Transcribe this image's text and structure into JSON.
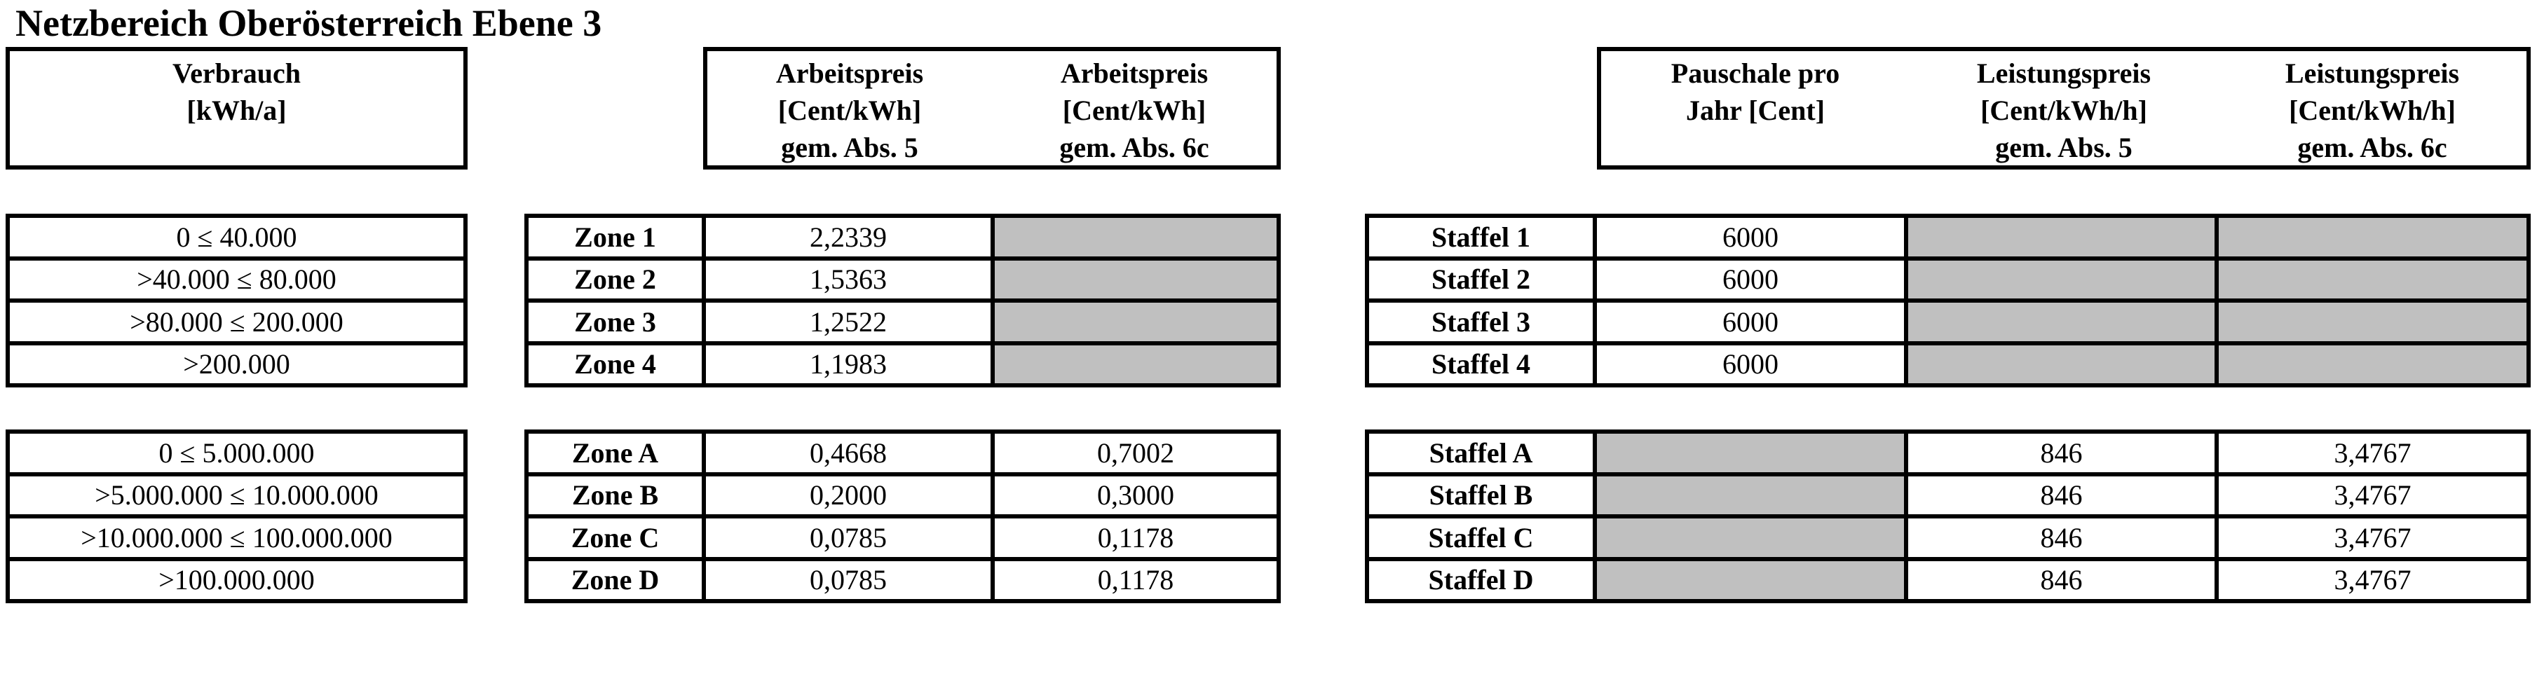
{
  "title": "Netzbereich Oberösterreich Ebene 3",
  "colors": {
    "background": "#ffffff",
    "grid": "#000000",
    "blocked_cell": "#c0c0c0",
    "text": "#000000"
  },
  "headers": {
    "verbrauch": {
      "line1": "Verbrauch",
      "line2": "[kWh/a]"
    },
    "arbeitspreis_abs5": {
      "line1": "Arbeitspreis",
      "line2": "[Cent/kWh]",
      "line3": "gem. Abs. 5"
    },
    "arbeitspreis_abs6c": {
      "line1": "Arbeitspreis",
      "line2": "[Cent/kWh]",
      "line3": "gem. Abs. 6c"
    },
    "pauschale": {
      "line1": "Pauschale pro",
      "line2": "Jahr [Cent]",
      "line3": ""
    },
    "leistungspreis_abs5": {
      "line1": "Leistungspreis",
      "line2": "[Cent/kWh/h]",
      "line3": "gem. Abs. 5"
    },
    "leistungspreis_abs6c": {
      "line1": "Leistungspreis",
      "line2": "[Cent/kWh/h]",
      "line3": "gem. Abs. 6c"
    }
  },
  "consumption_bands": {
    "group1": [
      "0 ≤ 40.000",
      ">40.000 ≤ 80.000",
      ">80.000 ≤ 200.000",
      ">200.000"
    ],
    "group2": [
      "0 ≤ 5.000.000",
      ">5.000.000 ≤ 10.000.000",
      ">10.000.000 ≤ 100.000.000",
      ">100.000.000"
    ]
  },
  "zones": {
    "group1": [
      {
        "label": "Zone 1",
        "abs5": "2,2339",
        "abs6c": ""
      },
      {
        "label": "Zone 2",
        "abs5": "1,5363",
        "abs6c": ""
      },
      {
        "label": "Zone 3",
        "abs5": "1,2522",
        "abs6c": ""
      },
      {
        "label": "Zone 4",
        "abs5": "1,1983",
        "abs6c": ""
      }
    ],
    "group2": [
      {
        "label": "Zone A",
        "abs5": "0,4668",
        "abs6c": "0,7002"
      },
      {
        "label": "Zone B",
        "abs5": "0,2000",
        "abs6c": "0,3000"
      },
      {
        "label": "Zone C",
        "abs5": "0,0785",
        "abs6c": "0,1178"
      },
      {
        "label": "Zone D",
        "abs5": "0,0785",
        "abs6c": "0,1178"
      }
    ]
  },
  "staffeln": {
    "group1": [
      {
        "label": "Staffel 1",
        "pauschale": "6000",
        "abs5": "",
        "abs6c": ""
      },
      {
        "label": "Staffel 2",
        "pauschale": "6000",
        "abs5": "",
        "abs6c": ""
      },
      {
        "label": "Staffel 3",
        "pauschale": "6000",
        "abs5": "",
        "abs6c": ""
      },
      {
        "label": "Staffel 4",
        "pauschale": "6000",
        "abs5": "",
        "abs6c": ""
      }
    ],
    "group2": [
      {
        "label": "Staffel A",
        "pauschale": "",
        "abs5": "846",
        "abs6c": "3,4767"
      },
      {
        "label": "Staffel B",
        "pauschale": "",
        "abs5": "846",
        "abs6c": "3,4767"
      },
      {
        "label": "Staffel C",
        "pauschale": "",
        "abs5": "846",
        "abs6c": "3,4767"
      },
      {
        "label": "Staffel D",
        "pauschale": "",
        "abs5": "846",
        "abs6c": "3,4767"
      }
    ]
  }
}
